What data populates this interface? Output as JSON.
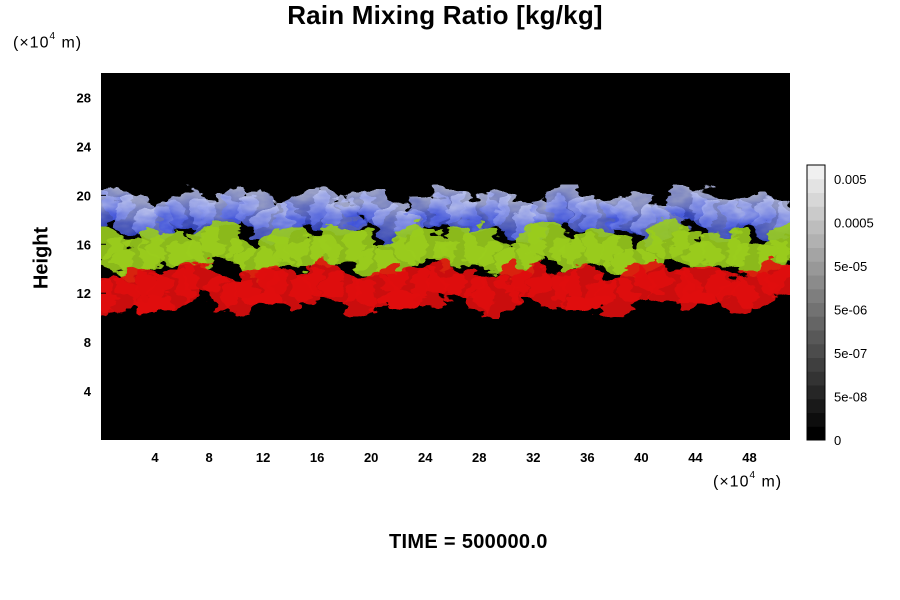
{
  "chart_data": {
    "type": "heatmap",
    "title": "Rain Mixing Ratio [kg/kg]",
    "ylabel": "Height",
    "x_unit": {
      "prefix": "(×10",
      "exponent": "4",
      "suffix": " m)"
    },
    "y_unit": {
      "prefix": "(×10",
      "exponent": "4",
      "suffix": " m)"
    },
    "xlim": [
      0,
      51
    ],
    "ylim": [
      0,
      30
    ],
    "x_ticks": [
      "4",
      "8",
      "12",
      "16",
      "20",
      "24",
      "28",
      "32",
      "36",
      "40",
      "44",
      "48"
    ],
    "y_ticks": [
      "4",
      "8",
      "12",
      "16",
      "20",
      "24",
      "28"
    ],
    "colorbar": {
      "labels": [
        "0.005",
        "0.0005",
        "5e-05",
        "5e-06",
        "5e-07",
        "5e-08",
        "0"
      ],
      "min_color": "#000000",
      "max_color": "#f0f0f0"
    },
    "background_color": "#000000",
    "bands": [
      {
        "name": "upper",
        "color": "#3a4fe0",
        "y_range": [
          17,
          20
        ]
      },
      {
        "name": "middle",
        "color": "#9acd1e",
        "y_range": [
          14,
          17
        ]
      },
      {
        "name": "lower",
        "color": "#e01010",
        "y_range": [
          11,
          14
        ]
      }
    ]
  },
  "footer": {
    "time_label": "TIME =",
    "time_value": "500000.0"
  }
}
